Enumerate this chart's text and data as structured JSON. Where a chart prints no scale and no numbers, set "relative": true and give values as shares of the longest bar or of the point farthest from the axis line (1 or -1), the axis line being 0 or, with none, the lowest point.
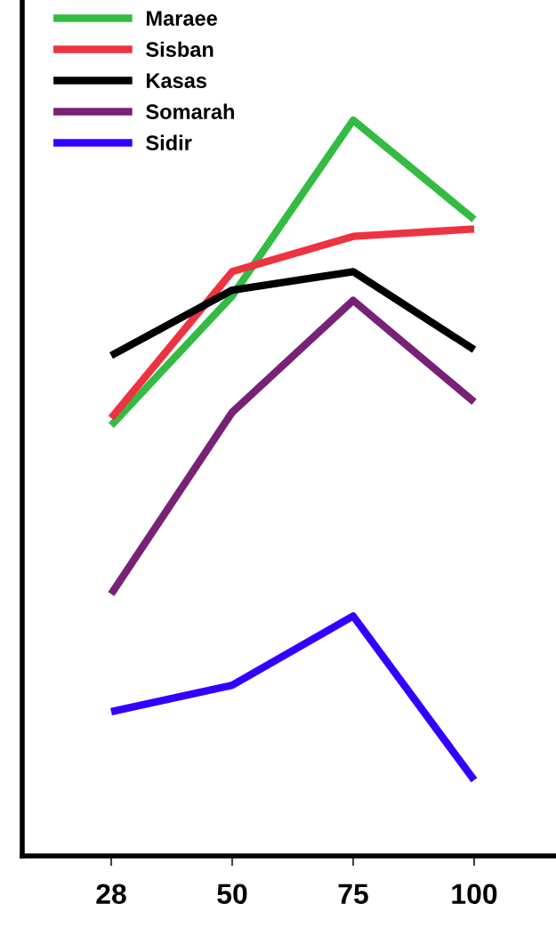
{
  "chart_data": {
    "type": "line",
    "relative": true,
    "categories": [
      "28",
      "50",
      "75",
      "100"
    ],
    "series": [
      {
        "name": "Maraee",
        "color": "#33bb44",
        "values": [
          0.585,
          0.761,
          1.0,
          0.865
        ]
      },
      {
        "name": "Sisban",
        "color": "#ee3340",
        "values": [
          0.595,
          0.794,
          0.842,
          0.852
        ]
      },
      {
        "name": "Kasas",
        "color": "#000000",
        "values": [
          0.68,
          0.769,
          0.794,
          0.688
        ]
      },
      {
        "name": "Somarah",
        "color": "#772277",
        "values": [
          0.356,
          0.603,
          0.755,
          0.617
        ]
      },
      {
        "name": "Sidir",
        "color": "#3300ff",
        "values": [
          0.196,
          0.232,
          0.326,
          0.103
        ]
      }
    ],
    "legend": "top left",
    "grid": false,
    "marker": "none",
    "line_style": "solid"
  }
}
